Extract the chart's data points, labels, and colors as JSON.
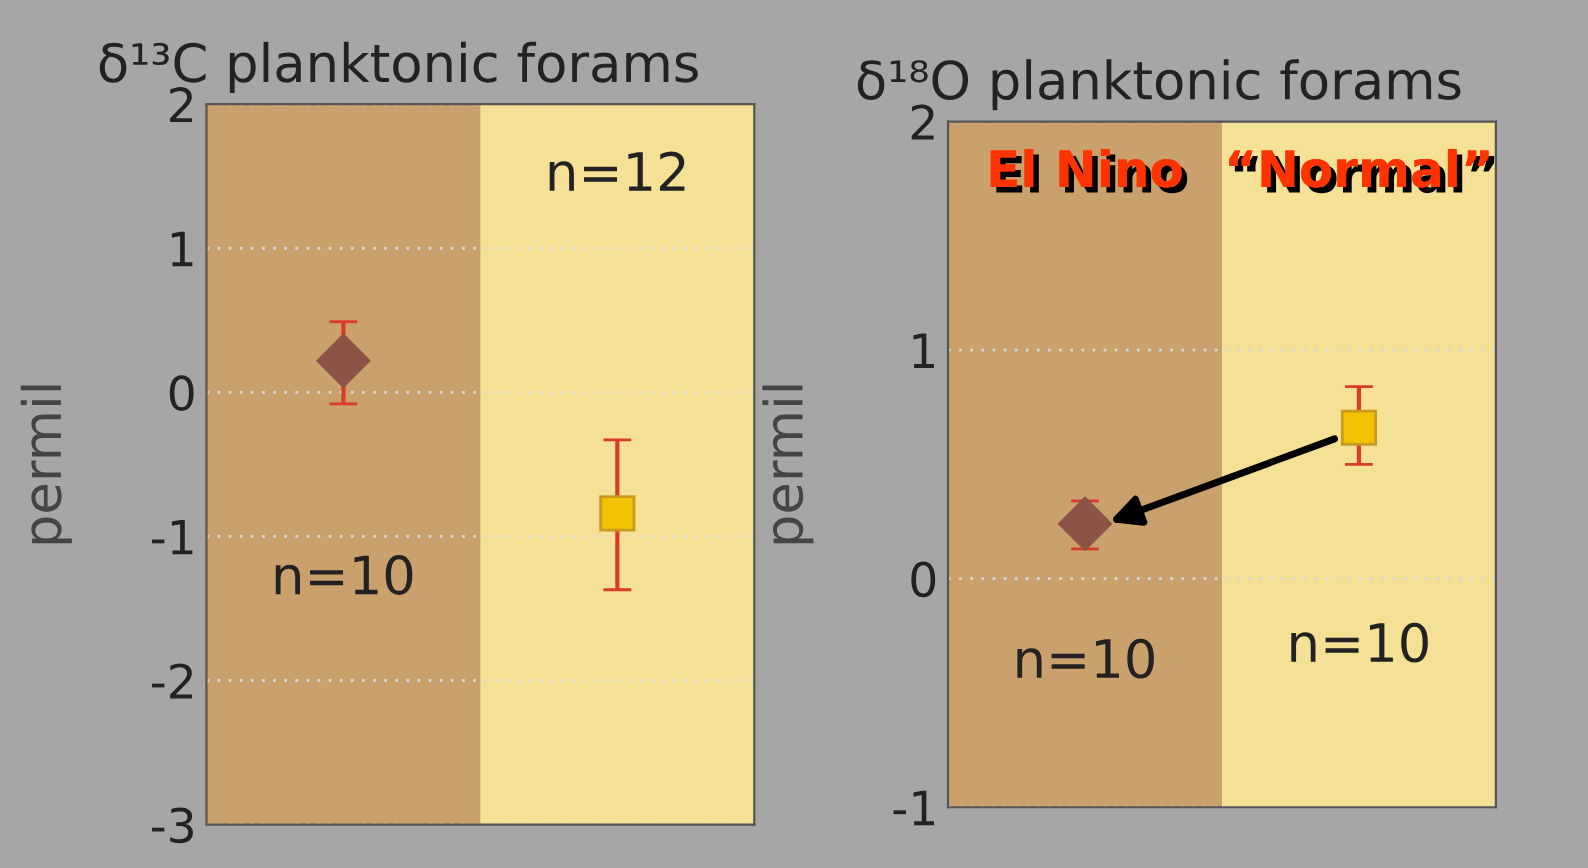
{
  "chart_data": [
    {
      "type": "scatter",
      "title": "δ¹³C planktonic forams",
      "ylabel": "permil",
      "categories": [
        null,
        null
      ],
      "series": [
        {
          "color": "#8b5446",
          "marker": "diamond",
          "values": [
            0.22,
            null
          ],
          "errors": [
            [
              -0.08,
              0.49
            ],
            null
          ]
        },
        {
          "color": "#f2c200",
          "marker": "square",
          "values": [
            null,
            -0.84
          ],
          "errors": [
            null,
            [
              -1.37,
              -0.33
            ]
          ]
        }
      ],
      "annotations": [
        "n=10",
        "n=12"
      ],
      "ylim": [
        -3,
        2
      ],
      "yticks": [
        -3,
        -2,
        -1,
        0,
        1,
        2
      ],
      "grid": "y"
    },
    {
      "type": "scatter",
      "title": "δ¹⁸O planktonic forams",
      "ylabel": "permil",
      "categories": [
        "El Nino",
        "“Normal”"
      ],
      "series": [
        {
          "color": "#8b5446",
          "marker": "diamond",
          "values": [
            0.24,
            null
          ],
          "errors": [
            [
              0.13,
              0.34
            ],
            null
          ]
        },
        {
          "color": "#f2c200",
          "marker": "square",
          "values": [
            null,
            0.66
          ],
          "errors": [
            null,
            [
              0.5,
              0.84
            ]
          ]
        }
      ],
      "annotations": [
        "n=10",
        "n=10"
      ],
      "ylim": [
        -1,
        2
      ],
      "yticks": [
        -1,
        0,
        1,
        2
      ],
      "grid": "y"
    }
  ]
}
